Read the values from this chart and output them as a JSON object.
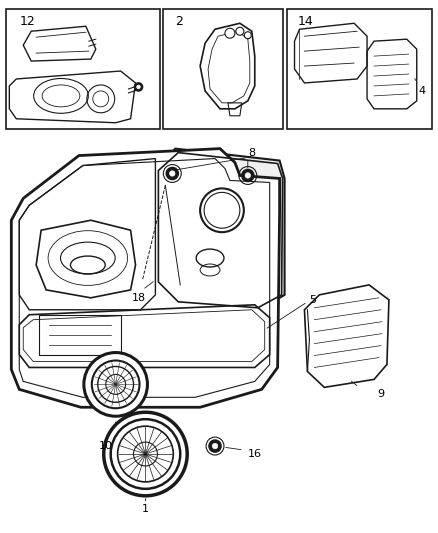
{
  "background_color": "#ffffff",
  "fig_width": 4.38,
  "fig_height": 5.33,
  "dpi": 100,
  "line_color": "#1a1a1a",
  "box1_label": "12",
  "box2_label": "2",
  "box3_label": "14",
  "label4": "4",
  "label8": "8",
  "label18": "18",
  "label5": "5",
  "label9": "9",
  "label10": "10",
  "label16": "16",
  "label1": "1"
}
